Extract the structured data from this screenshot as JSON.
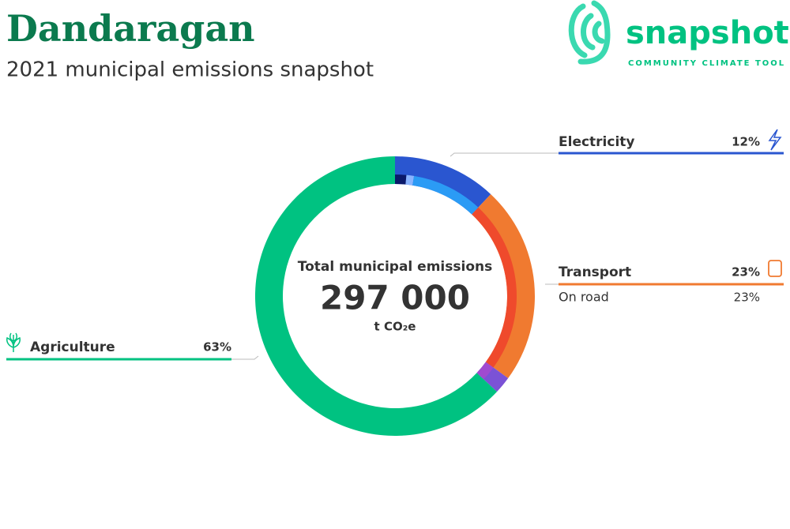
{
  "chart_data": {
    "type": "pie",
    "title": "Dandaragan",
    "subtitle": "2021 municipal emissions snapshot",
    "logo": {
      "name": "snapshot",
      "tagline": "COMMUNITY CLIMATE TOOL"
    },
    "center_label": "Total municipal emissions",
    "total": {
      "value": 297000,
      "label": "297 000"
    },
    "unit": "t CO₂e",
    "categories": [
      "Electricity",
      "Transport",
      null,
      "Agriculture"
    ],
    "values": [
      12,
      23,
      2,
      63
    ],
    "value_labels": [
      "12%",
      "23%",
      null,
      "63%"
    ],
    "colors": [
      "#2a56d0",
      "#f07a30",
      "#7b52d6",
      "#00c281"
    ],
    "inner": {
      "categories": [
        null,
        null,
        null,
        "On road",
        null
      ],
      "values": [
        1.5,
        1,
        9.5,
        23,
        2
      ],
      "value_labels": [
        null,
        null,
        null,
        "23%",
        null
      ],
      "colors": [
        "#0b1a6b",
        "#8ab4ff",
        "#2b9bf5",
        "#ef4a2c",
        "#a04ad0"
      ]
    }
  }
}
